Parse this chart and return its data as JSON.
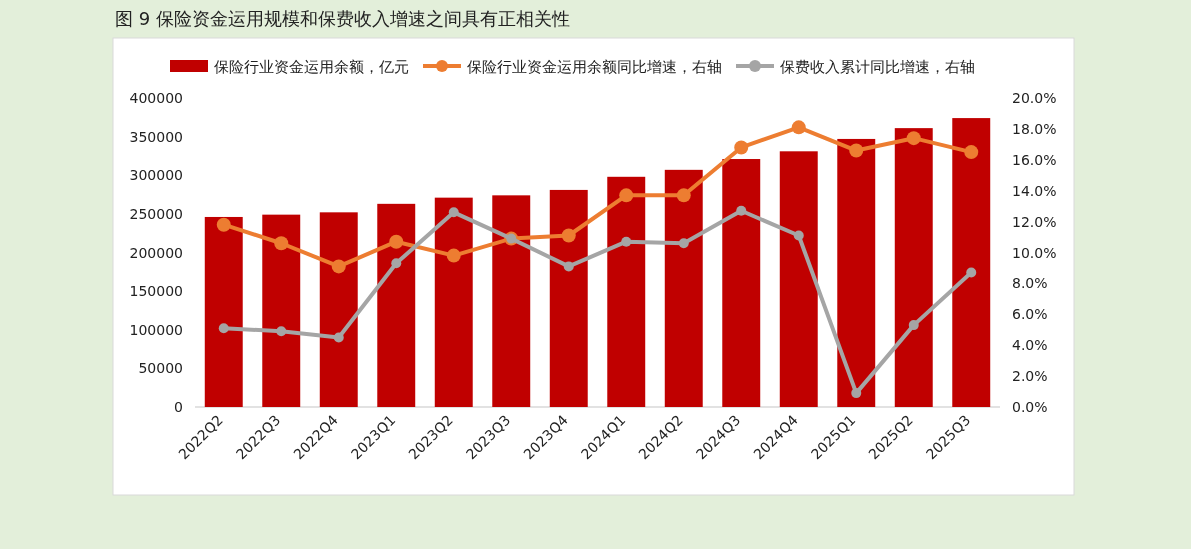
{
  "chart_data": {
    "type": "bar",
    "title": "图 9  保险资金运用规模和保费收入增速之间具有正相关性",
    "categories": [
      "2022Q2",
      "2022Q3",
      "2022Q4",
      "2023Q1",
      "2023Q2",
      "2023Q3",
      "2023Q4",
      "2024Q1",
      "2024Q2",
      "2024Q3",
      "2024Q4",
      "2025Q1",
      "2025Q2",
      "2025Q3"
    ],
    "series": [
      {
        "name": "保险行业资金运用余额，亿元",
        "color": "#c00000",
        "values": [
          246000,
          249000,
          252000,
          263000,
          271000,
          274000,
          281000,
          298000,
          307000,
          321000,
          331000,
          347000,
          361000,
          374000
        ]
      },
      {
        "name": "保险行业资金运用余额同比增速，右轴",
        "type": "line",
        "axis": "y2",
        "color": "#ed7d31",
        "values": [
          11.8,
          10.6,
          9.1,
          10.7,
          9.8,
          10.9,
          11.1,
          13.7,
          13.7,
          16.8,
          18.1,
          16.6,
          17.4,
          16.5
        ]
      },
      {
        "name": "保费收入累计同比增速，右轴",
        "type": "line",
        "axis": "y2",
        "color": "#a5a5a5",
        "values": [
          5.1,
          4.9,
          4.5,
          9.3,
          12.6,
          10.9,
          9.1,
          10.7,
          10.6,
          12.7,
          11.1,
          0.9,
          5.3,
          8.7
        ]
      }
    ],
    "ylim": [
      0,
      400000
    ],
    "yticks": [
      0,
      50000,
      100000,
      150000,
      200000,
      250000,
      300000,
      350000,
      400000
    ],
    "y2lim": [
      0,
      20
    ],
    "y2ticks": [
      {
        "value": 0,
        "label": "0.0%"
      },
      {
        "value": 2,
        "label": "2.0%"
      },
      {
        "value": 4,
        "label": "4.0%"
      },
      {
        "value": 6,
        "label": "6.0%"
      },
      {
        "value": 8,
        "label": "8.0%"
      },
      {
        "value": 10,
        "label": "10.0%"
      },
      {
        "value": 12,
        "label": "12.0%"
      },
      {
        "value": 14,
        "label": "14.0%"
      },
      {
        "value": 16,
        "label": "16.0%"
      },
      {
        "value": 18,
        "label": "18.0%"
      },
      {
        "value": 20,
        "label": "20.0%"
      }
    ],
    "legend": "top",
    "grid": false,
    "marker": "circle"
  }
}
